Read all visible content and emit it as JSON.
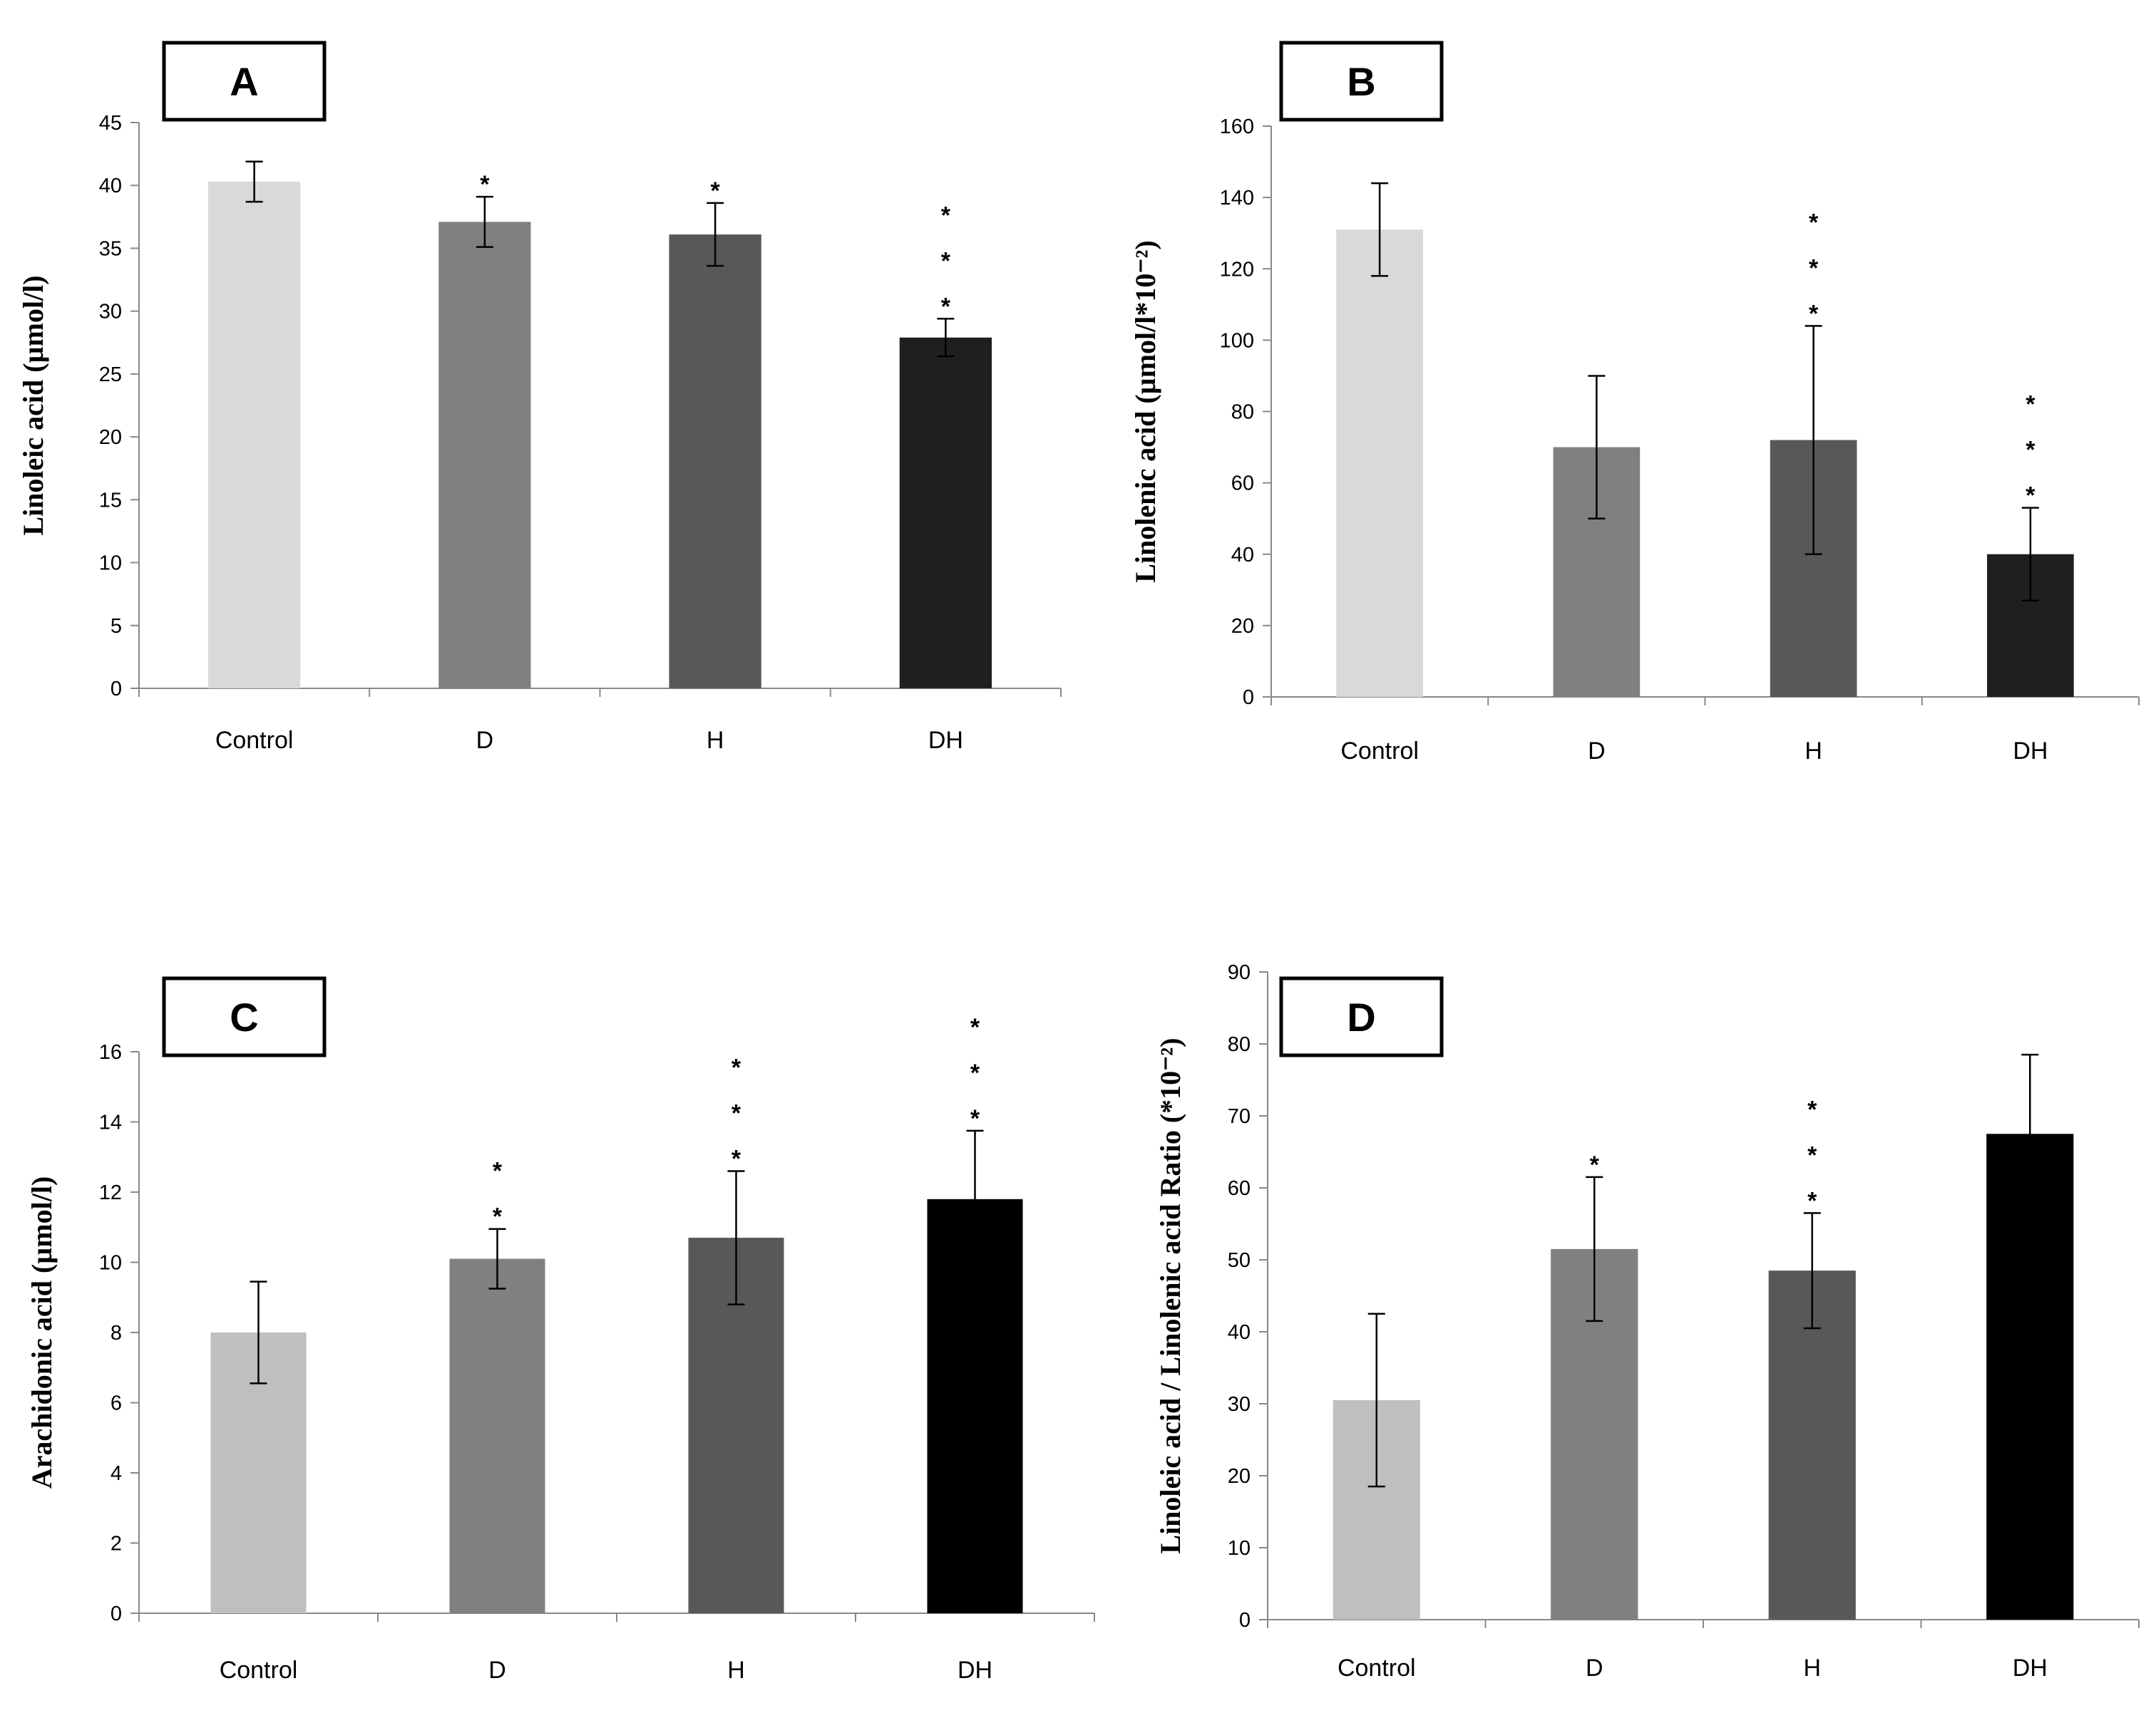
{
  "chart_data": [
    {
      "type": "bar",
      "panel": "A",
      "ylabel": "Linoleic acid (µmol/l)",
      "ylim": [
        0,
        45
      ],
      "yticks": [
        0,
        5,
        10,
        15,
        20,
        25,
        30,
        35,
        40,
        45
      ],
      "categories": [
        "Control",
        "D",
        "H",
        "DH"
      ],
      "values": [
        40.3,
        37.1,
        36.1,
        27.9
      ],
      "errors": [
        1.6,
        2.0,
        2.5,
        1.5
      ],
      "significance": [
        "",
        "*",
        "*",
        "***"
      ],
      "colors": [
        "#d9d9d9",
        "#808080",
        "#585858",
        "#1f1f1f"
      ]
    },
    {
      "type": "bar",
      "panel": "B",
      "ylabel": "Linolenic acid (µmol/l*10⁻²)",
      "ylim": [
        0,
        160
      ],
      "yticks": [
        0,
        20,
        40,
        60,
        80,
        100,
        120,
        140,
        160
      ],
      "categories": [
        "Control",
        "D",
        "H",
        "DH"
      ],
      "values": [
        131,
        70,
        72,
        40
      ],
      "errors": [
        13,
        20,
        32,
        13
      ],
      "significance": [
        "",
        "",
        "***",
        "***"
      ],
      "colors": [
        "#d9d9d9",
        "#808080",
        "#585858",
        "#1f1f1f"
      ]
    },
    {
      "type": "bar",
      "panel": "C",
      "ylabel": "Arachidonic acid (µmol/l)",
      "ylim": [
        0,
        16
      ],
      "yticks": [
        0,
        2,
        4,
        6,
        8,
        10,
        12,
        14,
        16
      ],
      "categories": [
        "Control",
        "D",
        "H",
        "DH"
      ],
      "values": [
        8.0,
        10.1,
        10.7,
        11.8
      ],
      "errors": [
        1.45,
        0.85,
        1.9,
        1.95
      ],
      "significance": [
        "",
        "**",
        "***",
        "***"
      ],
      "colors": [
        "#bfbfbf",
        "#808080",
        "#585858",
        "#000000"
      ]
    },
    {
      "type": "bar",
      "panel": "D",
      "ylabel": "Linoleic acid / Linolenic acid Ratio (*10⁻²)",
      "ylim": [
        0,
        90
      ],
      "yticks": [
        0,
        10,
        20,
        30,
        40,
        50,
        60,
        70,
        80,
        90
      ],
      "categories": [
        "Control",
        "D",
        "H",
        "DH"
      ],
      "values": [
        30.5,
        51.5,
        48.5,
        67.5
      ],
      "errors": [
        12,
        10,
        8,
        11
      ],
      "significance": [
        "",
        "*",
        "***",
        ""
      ],
      "colors": [
        "#bfbfbf",
        "#808080",
        "#585858",
        "#000000"
      ]
    }
  ]
}
